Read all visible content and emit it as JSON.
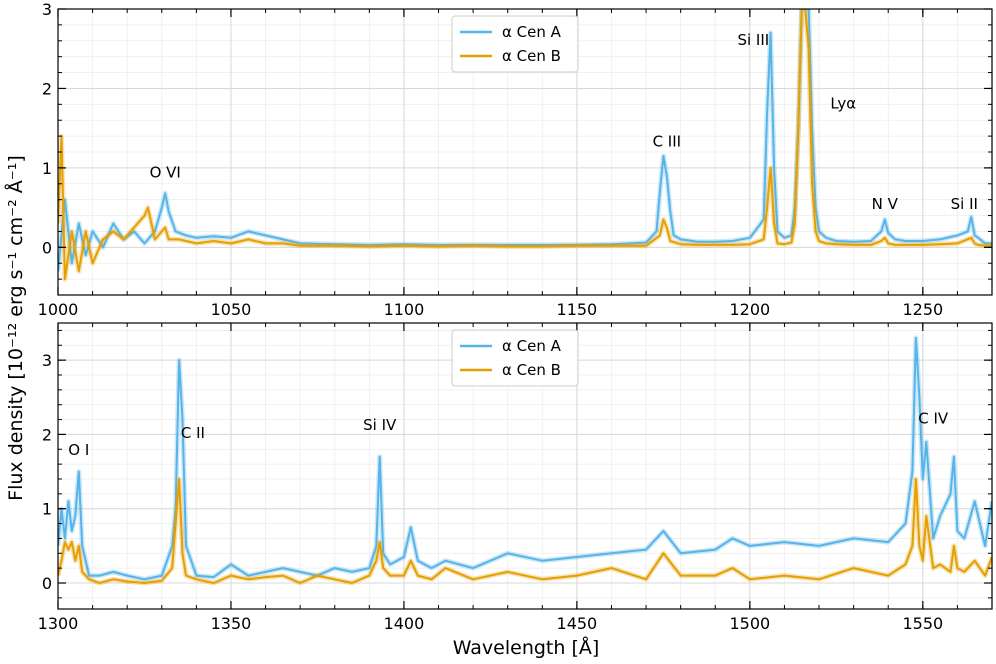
{
  "ylabel": "Flux density [10⁻¹² erg s⁻¹ cm⁻² Å⁻¹]",
  "xlabel": "Wavelength [Å]",
  "colors": {
    "cen_a": "#56B4E9",
    "cen_b": "#E69F00"
  },
  "legend": [
    "α Cen A",
    "α Cen B"
  ],
  "chart_data": [
    {
      "type": "line",
      "xlim": [
        1000,
        1270
      ],
      "ylim": [
        -0.6,
        3
      ],
      "xticks": [
        1000,
        1050,
        1100,
        1150,
        1200,
        1250
      ],
      "yticks": [
        0,
        1,
        2,
        3
      ],
      "grid": true,
      "legend_position": "top-center",
      "annotations": [
        {
          "text": "O VI",
          "x": 1031,
          "y": 0.88
        },
        {
          "text": "C III",
          "x": 1176,
          "y": 1.27
        },
        {
          "text": "Si III",
          "x": 1201,
          "y": 2.55
        },
        {
          "text": "Lyα",
          "x": 1227,
          "y": 1.75
        },
        {
          "text": "N V",
          "x": 1239,
          "y": 0.48
        },
        {
          "text": "Si II",
          "x": 1262,
          "y": 0.48
        }
      ],
      "series": [
        {
          "name": "α Cen A",
          "x": [
            1000,
            1002,
            1004,
            1006,
            1008,
            1010,
            1013,
            1016,
            1019,
            1022,
            1025,
            1028,
            1030,
            1031,
            1032,
            1034,
            1037,
            1040,
            1045,
            1050,
            1055,
            1060,
            1065,
            1070,
            1080,
            1090,
            1100,
            1110,
            1120,
            1130,
            1140,
            1150,
            1160,
            1170,
            1173,
            1174,
            1175,
            1176,
            1177,
            1178,
            1180,
            1185,
            1190,
            1195,
            1200,
            1204,
            1205,
            1206,
            1207,
            1208,
            1210,
            1212,
            1213,
            1214,
            1215,
            1216,
            1217,
            1218,
            1219,
            1220,
            1222,
            1225,
            1230,
            1235,
            1238,
            1239,
            1240,
            1242,
            1245,
            1250,
            1255,
            1260,
            1263,
            1264,
            1265,
            1266,
            1268,
            1270
          ],
          "y": [
            -0.3,
            0.6,
            -0.2,
            0.3,
            -0.1,
            0.2,
            0.0,
            0.3,
            0.1,
            0.2,
            0.05,
            0.2,
            0.5,
            0.68,
            0.45,
            0.2,
            0.15,
            0.12,
            0.14,
            0.12,
            0.2,
            0.15,
            0.1,
            0.05,
            0.04,
            0.03,
            0.04,
            0.03,
            0.03,
            0.03,
            0.03,
            0.03,
            0.04,
            0.06,
            0.2,
            0.7,
            1.15,
            0.9,
            0.45,
            0.15,
            0.1,
            0.07,
            0.07,
            0.08,
            0.12,
            0.35,
            1.7,
            2.7,
            1.0,
            0.2,
            0.12,
            0.15,
            0.5,
            1.5,
            3.0,
            3.0,
            3.0,
            1.5,
            0.5,
            0.2,
            0.12,
            0.08,
            0.07,
            0.08,
            0.2,
            0.35,
            0.18,
            0.1,
            0.08,
            0.08,
            0.1,
            0.15,
            0.2,
            0.38,
            0.15,
            0.12,
            0.05,
            0.05
          ]
        },
        {
          "name": "α Cen B",
          "x": [
            1000,
            1001,
            1002,
            1004,
            1006,
            1008,
            1010,
            1013,
            1016,
            1019,
            1022,
            1025,
            1026,
            1028,
            1030,
            1031,
            1032,
            1035,
            1040,
            1045,
            1050,
            1055,
            1060,
            1065,
            1070,
            1080,
            1090,
            1100,
            1110,
            1120,
            1130,
            1140,
            1150,
            1160,
            1170,
            1174,
            1175,
            1176,
            1177,
            1180,
            1185,
            1190,
            1195,
            1200,
            1204,
            1205,
            1206,
            1207,
            1208,
            1210,
            1212,
            1213,
            1214,
            1215,
            1216,
            1217,
            1218,
            1219,
            1220,
            1222,
            1225,
            1230,
            1235,
            1238,
            1239,
            1240,
            1242,
            1245,
            1250,
            1255,
            1260,
            1264,
            1265,
            1266,
            1268,
            1270
          ],
          "y": [
            0.3,
            1.4,
            -0.4,
            0.2,
            -0.3,
            0.2,
            -0.2,
            0.1,
            0.2,
            0.1,
            0.25,
            0.4,
            0.5,
            0.1,
            0.2,
            0.25,
            0.1,
            0.1,
            0.05,
            0.08,
            0.05,
            0.1,
            0.05,
            0.05,
            0.02,
            0.02,
            0.01,
            0.02,
            0.01,
            0.02,
            0.01,
            0.01,
            0.02,
            0.02,
            0.02,
            0.15,
            0.35,
            0.25,
            0.08,
            0.04,
            0.03,
            0.03,
            0.03,
            0.04,
            0.1,
            0.5,
            1.0,
            0.3,
            0.05,
            0.04,
            0.06,
            0.3,
            1.5,
            3.0,
            3.0,
            2.5,
            0.8,
            0.2,
            0.08,
            0.05,
            0.04,
            0.03,
            0.03,
            0.08,
            0.12,
            0.05,
            0.03,
            0.03,
            0.03,
            0.04,
            0.05,
            0.12,
            0.05,
            0.03,
            0.02,
            0.02
          ]
        }
      ]
    },
    {
      "type": "line",
      "xlim": [
        1300,
        1570
      ],
      "ylim": [
        -0.35,
        3.5
      ],
      "xticks": [
        1300,
        1350,
        1400,
        1450,
        1500,
        1550
      ],
      "yticks": [
        0,
        1,
        2,
        3
      ],
      "grid": true,
      "legend_position": "top-center",
      "annotations": [
        {
          "text": "O I",
          "x": 1306,
          "y": 1.72
        },
        {
          "text": "C II",
          "x": 1339,
          "y": 1.95
        },
        {
          "text": "Si IV",
          "x": 1393,
          "y": 2.06
        },
        {
          "text": "C IV",
          "x": 1553,
          "y": 2.15
        }
      ],
      "series": [
        {
          "name": "α Cen A",
          "x": [
            1300,
            1301,
            1302,
            1303,
            1304,
            1305,
            1306,
            1307,
            1309,
            1312,
            1316,
            1320,
            1325,
            1330,
            1333,
            1334,
            1335,
            1336,
            1337,
            1340,
            1345,
            1350,
            1355,
            1360,
            1365,
            1370,
            1375,
            1380,
            1385,
            1390,
            1392,
            1393,
            1394,
            1396,
            1400,
            1402,
            1404,
            1408,
            1412,
            1420,
            1430,
            1440,
            1450,
            1460,
            1470,
            1475,
            1480,
            1490,
            1495,
            1500,
            1510,
            1520,
            1530,
            1540,
            1545,
            1547,
            1548,
            1549,
            1550,
            1551,
            1553,
            1555,
            1558,
            1559,
            1560,
            1562,
            1565,
            1568,
            1570
          ],
          "y": [
            0.5,
            1.0,
            0.6,
            1.1,
            0.7,
            0.9,
            1.5,
            0.5,
            0.1,
            0.1,
            0.15,
            0.1,
            0.05,
            0.1,
            0.5,
            1.0,
            3.0,
            2.2,
            0.5,
            0.1,
            0.08,
            0.25,
            0.1,
            0.15,
            0.2,
            0.15,
            0.1,
            0.2,
            0.15,
            0.2,
            0.5,
            1.7,
            0.4,
            0.25,
            0.35,
            0.75,
            0.3,
            0.2,
            0.3,
            0.2,
            0.4,
            0.3,
            0.35,
            0.4,
            0.45,
            0.7,
            0.4,
            0.45,
            0.6,
            0.5,
            0.55,
            0.5,
            0.6,
            0.55,
            0.8,
            1.5,
            3.3,
            2.5,
            1.4,
            1.9,
            0.6,
            0.9,
            1.2,
            1.7,
            0.7,
            0.6,
            1.1,
            0.5,
            1.1
          ]
        },
        {
          "name": "α Cen B",
          "x": [
            1300,
            1301,
            1302,
            1303,
            1304,
            1305,
            1306,
            1307,
            1309,
            1312,
            1316,
            1320,
            1325,
            1330,
            1333,
            1334,
            1335,
            1336,
            1337,
            1340,
            1345,
            1350,
            1355,
            1360,
            1365,
            1370,
            1375,
            1380,
            1385,
            1390,
            1392,
            1393,
            1394,
            1396,
            1400,
            1402,
            1404,
            1408,
            1412,
            1420,
            1430,
            1440,
            1450,
            1460,
            1470,
            1475,
            1480,
            1490,
            1495,
            1500,
            1510,
            1520,
            1530,
            1540,
            1545,
            1547,
            1548,
            1549,
            1550,
            1551,
            1553,
            1555,
            1558,
            1559,
            1560,
            1562,
            1565,
            1568,
            1570
          ],
          "y": [
            0.1,
            0.3,
            0.55,
            0.45,
            0.55,
            0.3,
            0.5,
            0.15,
            0.05,
            0.0,
            0.05,
            0.02,
            0.0,
            0.03,
            0.2,
            0.8,
            1.4,
            0.4,
            0.1,
            0.05,
            0.0,
            0.1,
            0.05,
            0.08,
            0.1,
            0.0,
            0.1,
            0.05,
            0.0,
            0.1,
            0.3,
            0.55,
            0.2,
            0.1,
            0.1,
            0.3,
            0.1,
            0.05,
            0.2,
            0.05,
            0.15,
            0.05,
            0.1,
            0.2,
            0.05,
            0.4,
            0.1,
            0.1,
            0.2,
            0.05,
            0.1,
            0.05,
            0.2,
            0.1,
            0.25,
            0.5,
            1.4,
            0.5,
            0.3,
            0.9,
            0.2,
            0.25,
            0.15,
            0.5,
            0.2,
            0.15,
            0.3,
            0.1,
            0.35
          ]
        }
      ]
    }
  ]
}
